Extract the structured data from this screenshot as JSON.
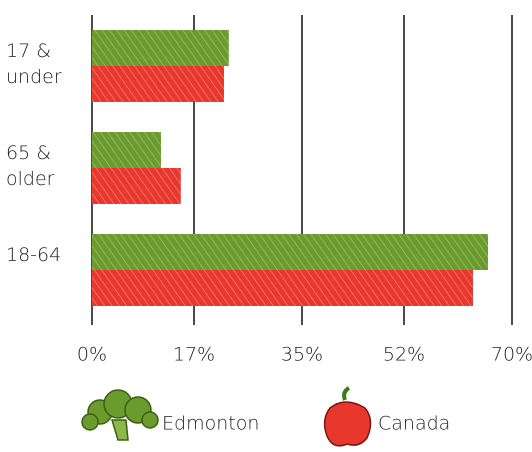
{
  "chart_data": {
    "type": "hbar",
    "categories": [
      "17 & under",
      "65 & older",
      "18-64"
    ],
    "series": [
      {
        "name": "Edmonton",
        "color": "#6b9b2c",
        "values": [
          22.8,
          11.5,
          66
        ]
      },
      {
        "name": "Canada",
        "color": "#e8382e",
        "values": [
          22,
          14.8,
          63.5
        ]
      }
    ],
    "xlim": [
      0,
      70
    ],
    "xticks": [
      {
        "value": 0,
        "label": "0%"
      },
      {
        "value": 17,
        "label": "17%"
      },
      {
        "value": 35,
        "label": "35%"
      },
      {
        "value": 52,
        "label": "52%"
      },
      {
        "value": 70,
        "label": "70%"
      }
    ],
    "grid": true,
    "legend": "bottom"
  }
}
